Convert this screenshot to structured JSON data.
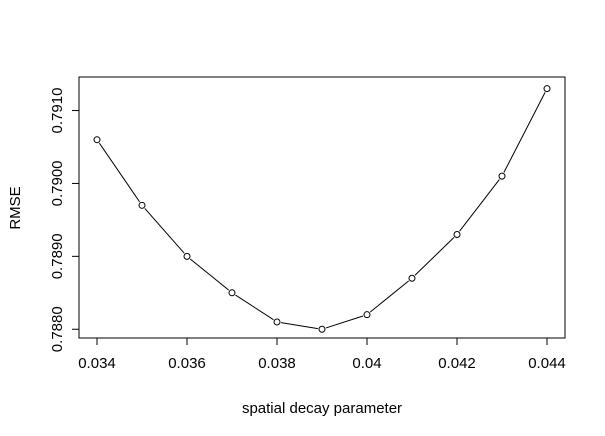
{
  "chart_data": {
    "type": "line",
    "xlabel": "spatial decay parameter",
    "ylabel": "RMSE",
    "xlim": [
      0.0336,
      0.0444
    ],
    "ylim": [
      0.78788,
      0.79146
    ],
    "x_ticks": [
      0.034,
      0.036,
      0.038,
      0.04,
      0.042,
      0.044
    ],
    "x_tick_labels": [
      "0.034",
      "0.036",
      "0.038",
      "0.04",
      "0.042",
      "0.044"
    ],
    "y_ticks": [
      0.788,
      0.789,
      0.79,
      0.791
    ],
    "y_tick_labels": [
      "0.7880",
      "0.7890",
      "0.7900",
      "0.7910"
    ],
    "series": [
      {
        "x": [
          0.034,
          0.035,
          0.036,
          0.037,
          0.038,
          0.039,
          0.04,
          0.041,
          0.042,
          0.043,
          0.044
        ],
        "y": [
          0.7906,
          0.7897,
          0.789,
          0.7885,
          0.7881,
          0.788,
          0.7882,
          0.7887,
          0.7893,
          0.7901,
          0.7913
        ],
        "marker": "open-circle",
        "color": "#000000"
      }
    ],
    "grid": false,
    "legend": "none"
  }
}
